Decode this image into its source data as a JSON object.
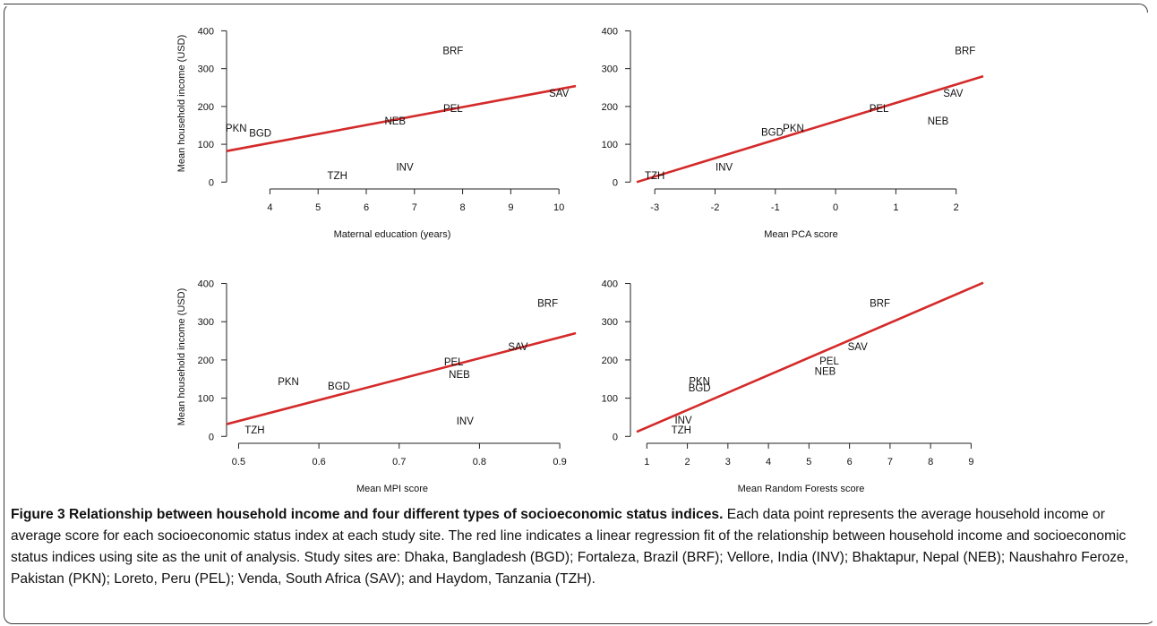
{
  "figure": {
    "caption_title": "Figure 3 Relationship between household income and four different types of socioeconomic status indices.",
    "caption_body": "Each data point represents the average household income or average score for each socioeconomic status index at each study site. The red line indicates a linear regression fit of the relationship between household income and socioeconomic status indices using site as the unit of analysis. Study sites are: Dhaka, Bangladesh (BGD); Fortaleza, Brazil (BRF); Vellore, India (INV); Bhaktapur, Nepal (NEB); Naushahro Feroze, Pakistan (PKN); Loreto, Peru (PEL); Venda, South Africa (SAV); and Haydom, Tanzania (TZH)."
  },
  "colors": {
    "fit_line": "#d42a2a",
    "text": "#111111"
  },
  "chart_data": [
    {
      "type": "scatter",
      "xlabel": "Maternal education (years)",
      "ylabel": "Mean household income (USD)",
      "xlim": [
        3.1,
        10.35
      ],
      "ylim": [
        -4,
        420
      ],
      "xticks": [
        4,
        5,
        6,
        7,
        8,
        9,
        10
      ],
      "yticks": [
        0,
        100,
        200,
        300,
        400
      ],
      "points": [
        {
          "label": "BRF",
          "x": 7.8,
          "y": 348
        },
        {
          "label": "SAV",
          "x": 10.0,
          "y": 235
        },
        {
          "label": "PEL",
          "x": 7.8,
          "y": 195
        },
        {
          "label": "NEB",
          "x": 6.6,
          "y": 162
        },
        {
          "label": "PKN",
          "x": 3.3,
          "y": 143
        },
        {
          "label": "BGD",
          "x": 3.8,
          "y": 130
        },
        {
          "label": "INV",
          "x": 6.8,
          "y": 40
        },
        {
          "label": "TZH",
          "x": 5.4,
          "y": 17
        }
      ],
      "fit": {
        "x": [
          3.1,
          10.35
        ],
        "y": [
          82,
          254
        ]
      }
    },
    {
      "type": "scatter",
      "xlabel": "Mean PCA score",
      "ylabel": "",
      "xlim": [
        -3.3,
        2.45
      ],
      "ylim": [
        -4,
        420
      ],
      "xticks": [
        -3,
        -2,
        -1,
        0,
        1,
        2
      ],
      "yticks": [
        0,
        100,
        200,
        300,
        400
      ],
      "points": [
        {
          "label": "BRF",
          "x": 2.15,
          "y": 348
        },
        {
          "label": "SAV",
          "x": 1.95,
          "y": 235
        },
        {
          "label": "PEL",
          "x": 0.72,
          "y": 195
        },
        {
          "label": "NEB",
          "x": 1.7,
          "y": 162
        },
        {
          "label": "PKN",
          "x": -0.7,
          "y": 143
        },
        {
          "label": "BGD",
          "x": -1.05,
          "y": 132
        },
        {
          "label": "INV",
          "x": -1.85,
          "y": 40
        },
        {
          "label": "TZH",
          "x": -3.0,
          "y": 17
        }
      ],
      "fit": {
        "x": [
          -3.3,
          2.45
        ],
        "y": [
          0,
          280
        ]
      }
    },
    {
      "type": "scatter",
      "xlabel": "Mean MPI score",
      "ylabel": "Mean household income (USD)",
      "xlim": [
        0.485,
        0.92
      ],
      "ylim": [
        -4,
        420
      ],
      "xticks": [
        0.5,
        0.6,
        0.7,
        0.8,
        0.9
      ],
      "yticks": [
        0,
        100,
        200,
        300,
        400
      ],
      "points": [
        {
          "label": "BRF",
          "x": 0.885,
          "y": 348
        },
        {
          "label": "SAV",
          "x": 0.848,
          "y": 235
        },
        {
          "label": "PEL",
          "x": 0.768,
          "y": 195
        },
        {
          "label": "NEB",
          "x": 0.775,
          "y": 162
        },
        {
          "label": "PKN",
          "x": 0.562,
          "y": 143
        },
        {
          "label": "BGD",
          "x": 0.625,
          "y": 132
        },
        {
          "label": "INV",
          "x": 0.782,
          "y": 40
        },
        {
          "label": "TZH",
          "x": 0.52,
          "y": 17
        }
      ],
      "fit": {
        "x": [
          0.485,
          0.92
        ],
        "y": [
          32,
          270
        ]
      }
    },
    {
      "type": "scatter",
      "xlabel": "Mean Random Forests score",
      "ylabel": "",
      "xlim": [
        0.75,
        9.3
      ],
      "ylim": [
        -4,
        420
      ],
      "xticks": [
        1,
        2,
        3,
        4,
        5,
        6,
        7,
        8,
        9
      ],
      "yticks": [
        0,
        100,
        200,
        300,
        400
      ],
      "points": [
        {
          "label": "BRF",
          "x": 6.75,
          "y": 348
        },
        {
          "label": "SAV",
          "x": 6.2,
          "y": 235
        },
        {
          "label": "PEL",
          "x": 5.5,
          "y": 197
        },
        {
          "label": "NEB",
          "x": 5.4,
          "y": 170
        },
        {
          "label": "PKN",
          "x": 2.3,
          "y": 145
        },
        {
          "label": "BGD",
          "x": 2.3,
          "y": 127
        },
        {
          "label": "INV",
          "x": 1.9,
          "y": 43
        },
        {
          "label": "TZH",
          "x": 1.85,
          "y": 17
        }
      ],
      "fit": {
        "x": [
          0.75,
          9.3
        ],
        "y": [
          12,
          402
        ]
      }
    }
  ]
}
